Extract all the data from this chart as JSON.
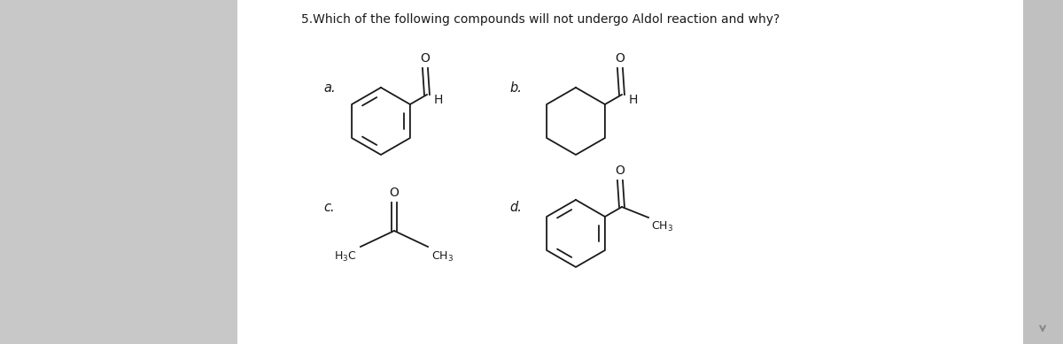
{
  "title": "5.Which of the following compounds will not undergo Aldol reaction and why?",
  "background_color": "#ffffff",
  "left_panel_color": "#d0d0d0",
  "right_panel_color": "#d0d0d0",
  "sidebar_color": "#b0b0b0",
  "label_a": "a.",
  "label_b": "b.",
  "label_c": "c.",
  "label_d": "d.",
  "text_color": "#1a1a1a",
  "title_fontsize": 10.0,
  "label_fontsize": 10.5
}
